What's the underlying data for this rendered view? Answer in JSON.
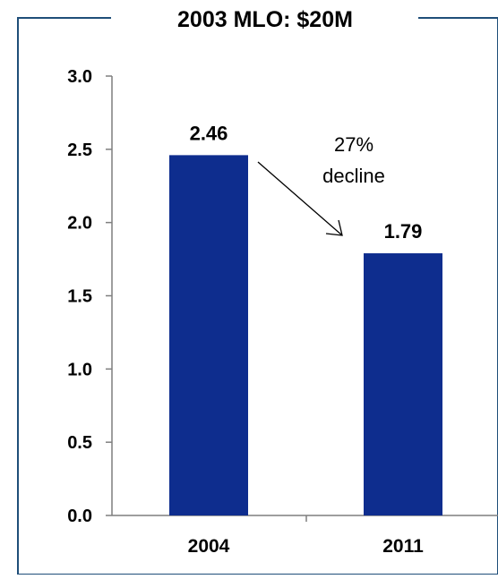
{
  "chart_data": {
    "type": "bar",
    "title": "2003 MLO: $20M",
    "xlabel": "",
    "ylabel": "",
    "categories": [
      "2004",
      "2011"
    ],
    "values": [
      2.46,
      1.79
    ],
    "data_labels": [
      "2.46",
      "1.79"
    ],
    "ylim": [
      0,
      3.0
    ],
    "yticks": [
      "0.0",
      "0.5",
      "1.0",
      "1.5",
      "2.0",
      "2.5",
      "3.0"
    ],
    "grid": false,
    "legend": "none",
    "annotation": {
      "line1": "27%",
      "line2": "decline",
      "from_category": "2004",
      "to_category": "2011"
    },
    "colors": {
      "bar": "#0e2d8e",
      "frame": "#1f4e79",
      "axis": "#7f7f7f",
      "text": "#000000"
    }
  }
}
